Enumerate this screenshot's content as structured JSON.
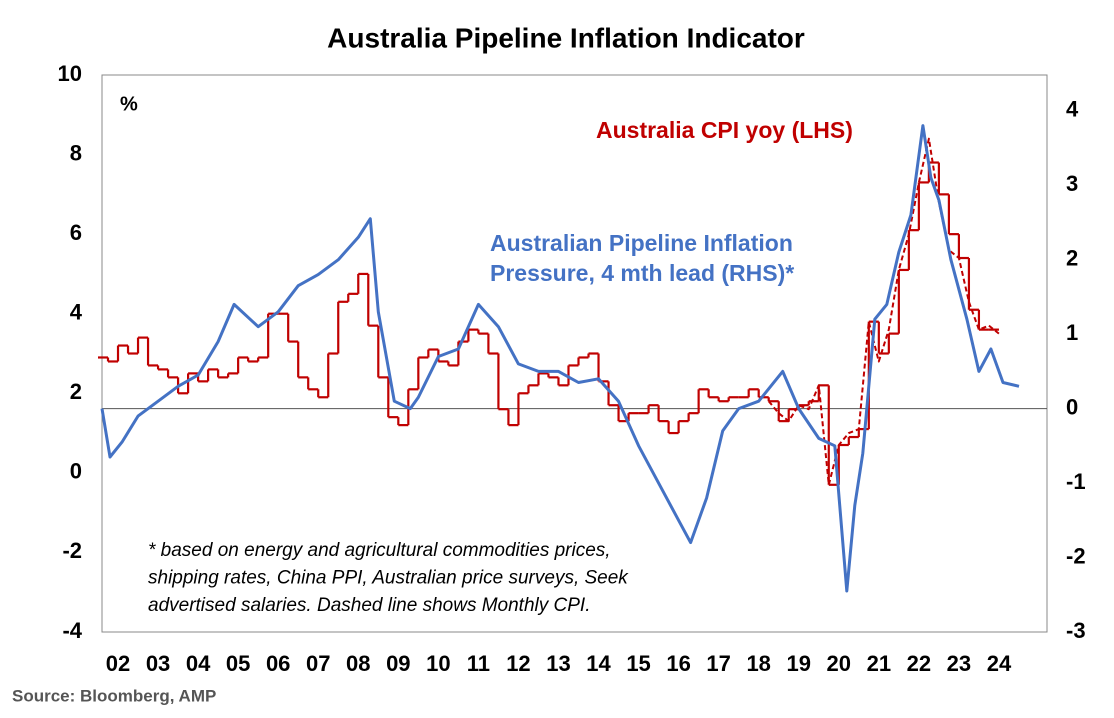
{
  "chart_data": {
    "type": "line",
    "title": "Australia Pipeline Inflation Indicator",
    "y_unit_label": "%",
    "footnote": [
      "* based on energy and agricultural commodities prices,",
      "shipping rates, China PPI, Australian price surveys, Seek",
      "advertised salaries. Dashed line shows Monthly CPI."
    ],
    "source": "Source: Bloomberg, AMP",
    "xlim": [
      2002.1,
      2025.7
    ],
    "xticks": [
      {
        "value": 2002.5,
        "label": "02"
      },
      {
        "value": 2003.5,
        "label": "03"
      },
      {
        "value": 2004.5,
        "label": "04"
      },
      {
        "value": 2005.5,
        "label": "05"
      },
      {
        "value": 2006.5,
        "label": "06"
      },
      {
        "value": 2007.5,
        "label": "07"
      },
      {
        "value": 2008.5,
        "label": "08"
      },
      {
        "value": 2009.5,
        "label": "09"
      },
      {
        "value": 2010.5,
        "label": "10"
      },
      {
        "value": 2011.5,
        "label": "11"
      },
      {
        "value": 2012.5,
        "label": "12"
      },
      {
        "value": 2013.5,
        "label": "13"
      },
      {
        "value": 2014.5,
        "label": "14"
      },
      {
        "value": 2015.5,
        "label": "15"
      },
      {
        "value": 2016.5,
        "label": "16"
      },
      {
        "value": 2017.5,
        "label": "17"
      },
      {
        "value": 2018.5,
        "label": "18"
      },
      {
        "value": 2019.5,
        "label": "19"
      },
      {
        "value": 2020.5,
        "label": "20"
      },
      {
        "value": 2021.5,
        "label": "21"
      },
      {
        "value": 2022.5,
        "label": "22"
      },
      {
        "value": 2023.5,
        "label": "23"
      },
      {
        "value": 2024.5,
        "label": "24"
      }
    ],
    "ylim": [
      -4,
      10
    ],
    "yticks": [
      -4,
      -2,
      0,
      2,
      4,
      6,
      8,
      10
    ],
    "y2lim": [
      -3,
      4.48
    ],
    "y2ticks": [
      -3,
      -2,
      -1,
      0,
      1,
      2,
      3,
      4
    ],
    "series": [
      {
        "name": "Australia CPI yoy (LHS)",
        "color": "#c00000",
        "step": true,
        "x": [
          2002,
          2002.25,
          2002.5,
          2002.75,
          2003,
          2003.25,
          2003.5,
          2003.75,
          2004,
          2004.25,
          2004.5,
          2004.75,
          2005,
          2005.25,
          2005.5,
          2005.75,
          2006,
          2006.25,
          2006.5,
          2006.75,
          2007,
          2007.25,
          2007.5,
          2007.75,
          2008,
          2008.25,
          2008.5,
          2008.75,
          2009,
          2009.25,
          2009.5,
          2009.75,
          2010,
          2010.25,
          2010.5,
          2010.75,
          2011,
          2011.25,
          2011.5,
          2011.75,
          2012,
          2012.25,
          2012.5,
          2012.75,
          2013,
          2013.25,
          2013.5,
          2013.75,
          2014,
          2014.25,
          2014.5,
          2014.75,
          2015,
          2015.25,
          2015.5,
          2015.75,
          2016,
          2016.25,
          2016.5,
          2016.75,
          2017,
          2017.25,
          2017.5,
          2017.75,
          2018,
          2018.25,
          2018.5,
          2018.75,
          2019,
          2019.25,
          2019.5,
          2019.75,
          2020,
          2020.25,
          2020.5,
          2020.75,
          2021,
          2021.25,
          2021.5,
          2021.75,
          2022,
          2022.25,
          2022.5,
          2022.75,
          2023,
          2023.25,
          2023.5,
          2023.75,
          2024,
          2024.25
        ],
        "values": [
          2.9,
          2.8,
          3.2,
          3.0,
          3.4,
          2.7,
          2.6,
          2.4,
          2.0,
          2.5,
          2.3,
          2.6,
          2.4,
          2.5,
          2.9,
          2.8,
          2.9,
          4.0,
          4.0,
          3.3,
          2.4,
          2.1,
          1.9,
          3.0,
          4.3,
          4.5,
          5.0,
          3.7,
          2.4,
          1.4,
          1.2,
          2.1,
          2.9,
          3.1,
          2.8,
          2.7,
          3.3,
          3.6,
          3.5,
          3.0,
          1.6,
          1.2,
          2.0,
          2.2,
          2.5,
          2.4,
          2.2,
          2.7,
          2.9,
          3.0,
          2.3,
          1.7,
          1.3,
          1.5,
          1.5,
          1.7,
          1.3,
          1.0,
          1.3,
          1.5,
          2.1,
          1.9,
          1.8,
          1.9,
          1.9,
          2.1,
          1.9,
          1.8,
          1.3,
          1.6,
          1.7,
          1.8,
          2.2,
          -0.3,
          0.7,
          0.9,
          1.1,
          3.8,
          3.0,
          3.5,
          5.1,
          6.1,
          7.3,
          7.8,
          7.0,
          6.0,
          5.4,
          4.1,
          3.6,
          3.6
        ]
      },
      {
        "color": "#c00000",
        "dash": true,
        "x": [
          2018.75,
          2019,
          2019.25,
          2019.5,
          2019.75,
          2020,
          2020.25,
          2020.5,
          2020.75,
          2021,
          2021.25,
          2021.5,
          2021.75,
          2022,
          2022.25,
          2022.5,
          2022.75,
          2023,
          2023.25,
          2023.5,
          2023.75,
          2024,
          2024.25,
          2024.5
        ],
        "values": [
          1.8,
          1.5,
          1.3,
          1.7,
          1.6,
          2.2,
          -0.3,
          0.7,
          1.0,
          1.1,
          3.8,
          2.8,
          3.6,
          5.1,
          6.0,
          7.3,
          8.4,
          6.8,
          5.6,
          5.4,
          4.3,
          3.6,
          3.7,
          3.5
        ]
      },
      {
        "name": "Australian Pipeline Inflation Pressure, 4 mth lead (RHS)*",
        "color": "#4472c4",
        "axis": "y2",
        "x": [
          2002.1,
          2002.3,
          2002.6,
          2003.0,
          2003.5,
          2004.0,
          2004.5,
          2005.0,
          2005.4,
          2006.0,
          2006.5,
          2007.0,
          2007.5,
          2008.0,
          2008.5,
          2008.8,
          2009.0,
          2009.4,
          2009.8,
          2010.0,
          2010.5,
          2011.0,
          2011.5,
          2012.0,
          2012.5,
          2013.0,
          2013.5,
          2014.0,
          2014.5,
          2015.0,
          2015.5,
          2016.0,
          2016.5,
          2016.8,
          2017.2,
          2017.6,
          2018.0,
          2018.5,
          2019.1,
          2019.5,
          2020.0,
          2020.4,
          2020.7,
          2020.9,
          2021.1,
          2021.4,
          2021.7,
          2022.0,
          2022.3,
          2022.6,
          2022.8,
          2023.0,
          2023.3,
          2023.7,
          2024.0,
          2024.3,
          2024.6,
          2025.0
        ],
        "values": [
          0,
          -0.65,
          -0.45,
          -0.1,
          0.1,
          0.3,
          0.45,
          0.9,
          1.4,
          1.1,
          1.3,
          1.65,
          1.8,
          2.0,
          2.3,
          2.55,
          1.3,
          0.1,
          0.0,
          0.15,
          0.7,
          0.8,
          1.4,
          1.1,
          0.6,
          0.5,
          0.5,
          0.35,
          0.4,
          0.1,
          -0.5,
          -1.0,
          -1.5,
          -1.8,
          -1.2,
          -0.3,
          0.0,
          0.1,
          0.5,
          0.0,
          -0.4,
          -0.5,
          -2.45,
          -1.3,
          -0.6,
          1.2,
          1.4,
          2.1,
          2.6,
          3.8,
          3.1,
          2.8,
          2.0,
          1.2,
          0.5,
          0.8,
          0.35,
          0.3
        ]
      }
    ]
  }
}
